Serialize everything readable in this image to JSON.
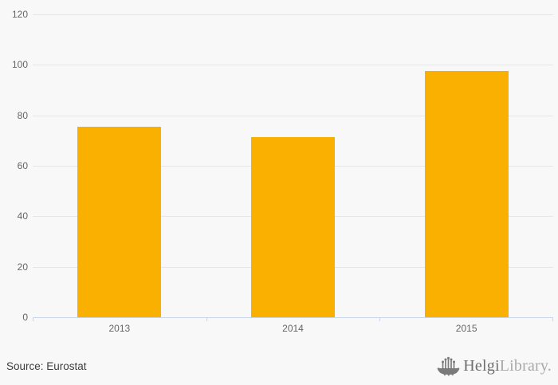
{
  "chart_data": {
    "type": "bar",
    "categories": [
      "2013",
      "2014",
      "2015"
    ],
    "values": [
      75.4,
      71.3,
      97.5
    ],
    "ylim": [
      0,
      120
    ],
    "yticks": [
      0,
      20,
      40,
      60,
      80,
      100,
      120
    ],
    "grid": true,
    "legend": "none",
    "bar_color": "#f9b001",
    "gridline_color": "#e6e6e6",
    "axis_line_color": "#ccd6eb",
    "label_color": "#666666",
    "background_color": "#f8f8f8"
  },
  "footer": {
    "source_text": "Source: Eurostat",
    "logo": {
      "icon": "viking-ship-icon",
      "brand_primary": "Helgi",
      "brand_secondary": "Library.",
      "primary_color": "#6e6e6e",
      "secondary_color": "#a9a9a9",
      "icon_color": "#7a7a7a"
    }
  }
}
